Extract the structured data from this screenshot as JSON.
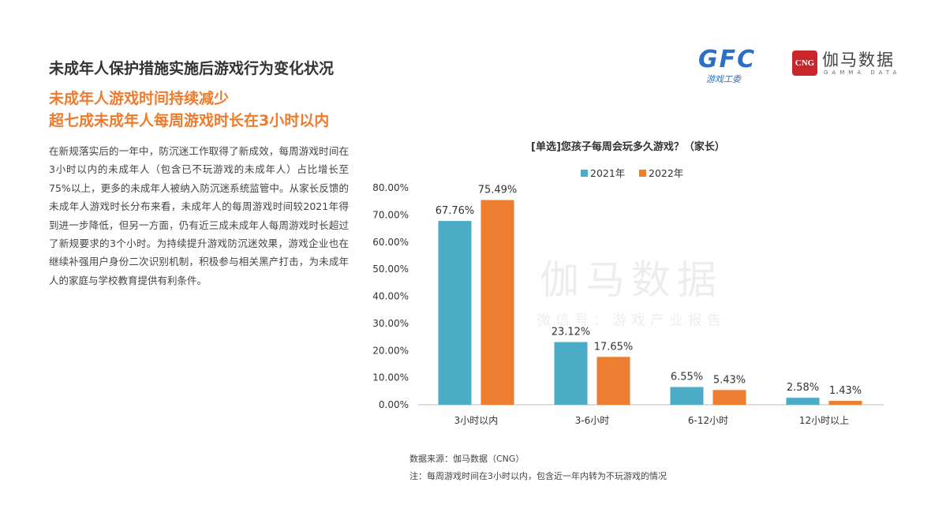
{
  "header": {
    "title": "未成年人保护措施实施后游戏行为变化状况",
    "subtitle1": "未成年人游戏时间持续减少",
    "subtitle2": "超七成未成年人每周游戏时长在3小时以内"
  },
  "logos": {
    "gfc_text": "GFC",
    "gfc_sub": "游戏工委",
    "cng_box": "CNG",
    "cng_name": "伽马数据",
    "cng_en": "GAMMA DATA"
  },
  "body_text": "在新规落实后的一年中，防沉迷工作取得了新成效，每周游戏时间在3小时以内的未成年人（包含已不玩游戏的未成年人）占比增长至75%以上，更多的未成年人被纳入防沉迷系统监管中。从家长反馈的未成年人游戏时长分布来看，未成年人的每周游戏时间较2021年得到进一步降低，但另一方面，仍有近三成未成年人每周游戏时长超过了新规要求的3个小时。为持续提升游戏防沉迷效果，游戏企业也在继续补强用户身份二次识别机制，积极参与相关黑产打击，为未成年人的家庭与学校教育提供有利条件。",
  "watermark": {
    "main": "伽马数据",
    "sub": "微信号：游戏产业报告"
  },
  "footer": {
    "source": "数据来源：伽马数据（CNG）",
    "note": "注：每周游戏时间在3小时以内，包含近一年内转为不玩游戏的情况"
  },
  "chart_data": {
    "type": "bar",
    "title": "[单选]您孩子每周会玩多久游戏？（家长）",
    "categories": [
      "3小时以内",
      "3-6小时",
      "6-12小时",
      "12小时以上"
    ],
    "series": [
      {
        "name": "2021年",
        "color": "#4bacc6",
        "values": [
          67.76,
          23.12,
          6.55,
          2.58
        ]
      },
      {
        "name": "2022年",
        "color": "#ed7d31",
        "values": [
          75.49,
          17.65,
          5.43,
          1.43
        ]
      }
    ],
    "ylim": [
      0,
      80
    ],
    "yticks": [
      "0.00%",
      "10.00%",
      "20.00%",
      "30.00%",
      "40.00%",
      "50.00%",
      "60.00%",
      "70.00%",
      "80.00%"
    ],
    "grid": false,
    "legend": "top-center"
  }
}
